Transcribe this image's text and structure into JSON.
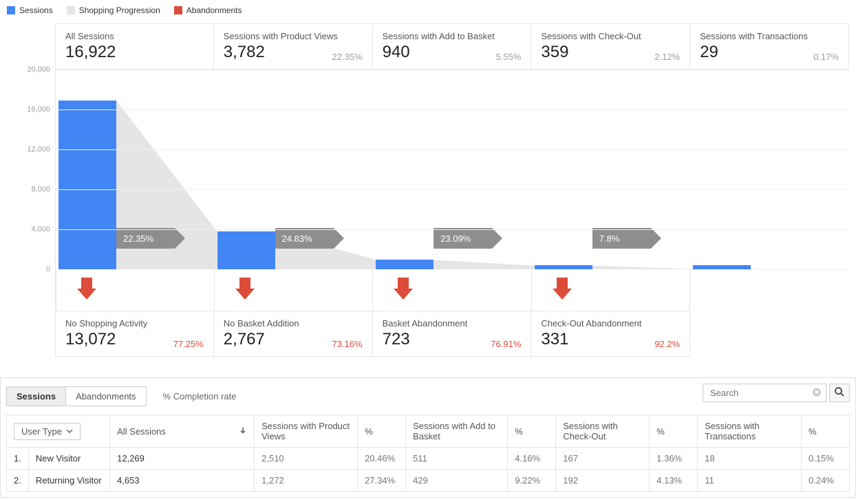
{
  "legend": {
    "items": [
      {
        "label": "Sessions",
        "color": "#4285f4"
      },
      {
        "label": "Shopping Progression",
        "color": "#e5e5e5"
      },
      {
        "label": "Abandonments",
        "color": "#dd4b39"
      }
    ]
  },
  "chart": {
    "ymax": 20000,
    "yticks": [
      {
        "v": 20000,
        "label": "20,000"
      },
      {
        "v": 16000,
        "label": "16,000"
      },
      {
        "v": 12000,
        "label": "12,000"
      },
      {
        "v": 8000,
        "label": "8,000"
      },
      {
        "v": 4000,
        "label": "4,000"
      },
      {
        "v": 0,
        "label": "0"
      }
    ],
    "bar_color": "#4285f4",
    "progression_color": "#e5e5e5",
    "arrow_color": "#dd4b39",
    "tag_bg": "#8e8e8e",
    "progress_tags": [
      "22.35%",
      "24.83%",
      "23.09%",
      "7.8%"
    ]
  },
  "stages": [
    {
      "label": "All Sessions",
      "value_label": "16,922",
      "value": 16922,
      "pct": ""
    },
    {
      "label": "Sessions with Product Views",
      "value_label": "3,782",
      "value": 3782,
      "pct": "22.35%"
    },
    {
      "label": "Sessions with Add to Basket",
      "value_label": "940",
      "value": 940,
      "pct": "5.55%"
    },
    {
      "label": "Sessions with Check-Out",
      "value_label": "359",
      "value": 359,
      "pct": "2.12%"
    },
    {
      "label": "Sessions with Transactions",
      "value_label": "29",
      "value": 29,
      "pct": "0.17%"
    }
  ],
  "abandon": [
    {
      "label": "No Shopping Activity",
      "value_label": "13,072",
      "value": 13072,
      "pct": "77.25%"
    },
    {
      "label": "No Basket Addition",
      "value_label": "2,767",
      "value": 2767,
      "pct": "73.16%"
    },
    {
      "label": "Basket Abandonment",
      "value_label": "723",
      "value": 723,
      "pct": "76.91%"
    },
    {
      "label": "Check-Out Abandonment",
      "value_label": "331",
      "value": 331,
      "pct": "92.2%"
    }
  ],
  "tabs": {
    "sessions": "Sessions",
    "abandon": "Abandonments",
    "completion": "% Completion rate"
  },
  "search": {
    "placeholder": "Search"
  },
  "table": {
    "dimension_button": "User Type",
    "columns": [
      "All Sessions",
      "Sessions with Product Views",
      "%",
      "Sessions with Add to Basket",
      "%",
      "Sessions with Check-Out",
      "%",
      "Sessions with Transactions",
      "%"
    ],
    "rows": [
      {
        "idx": "1",
        "name": "New Visitor",
        "c": [
          "12,269",
          "2,510",
          "20.46%",
          "511",
          "4.16%",
          "167",
          "1.36%",
          "18",
          "0.15%"
        ]
      },
      {
        "idx": "2",
        "name": "Returning Visitor",
        "c": [
          "4,653",
          "1,272",
          "27.34%",
          "429",
          "9.22%",
          "192",
          "4.13%",
          "11",
          "0.24%"
        ]
      }
    ]
  }
}
